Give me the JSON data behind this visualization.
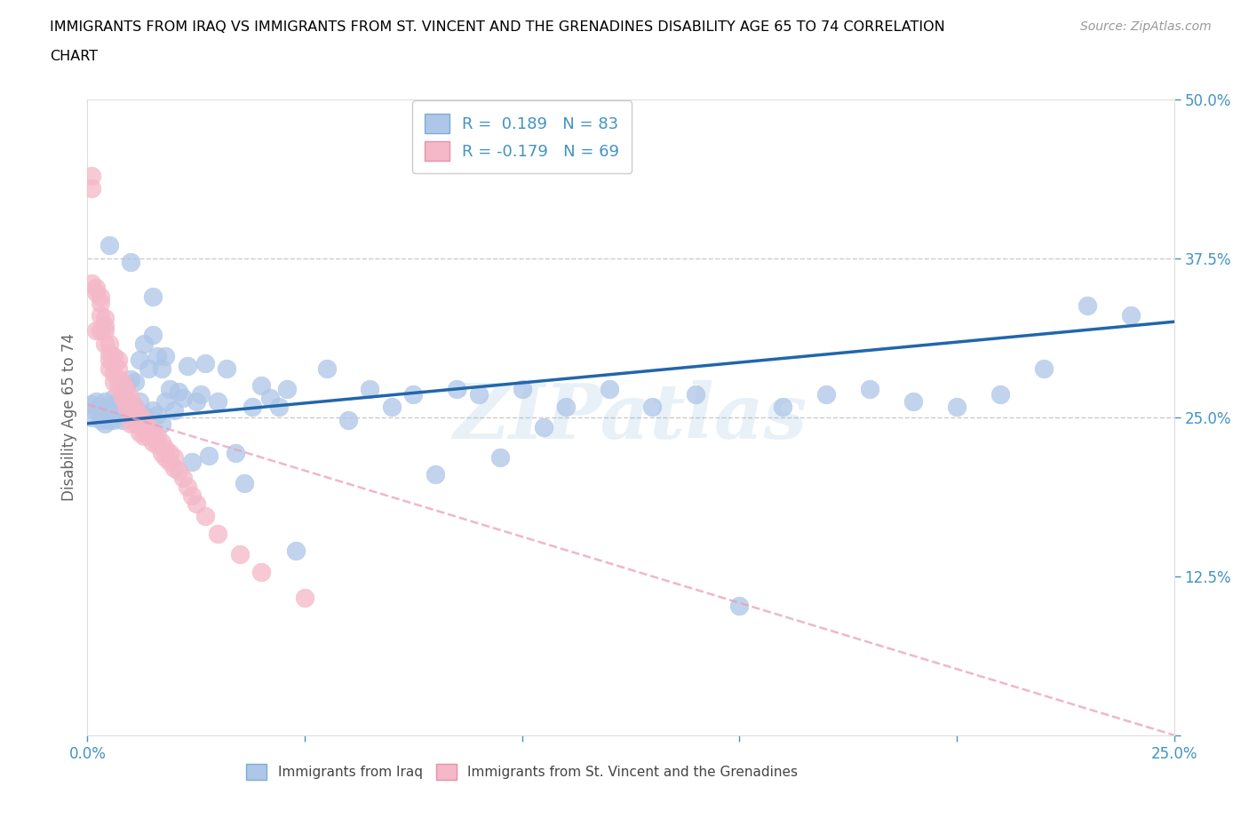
{
  "title_line1": "IMMIGRANTS FROM IRAQ VS IMMIGRANTS FROM ST. VINCENT AND THE GRENADINES DISABILITY AGE 65 TO 74 CORRELATION",
  "title_line2": "CHART",
  "source": "Source: ZipAtlas.com",
  "ylabel": "Disability Age 65 to 74",
  "xmin": 0.0,
  "xmax": 0.25,
  "ymin": 0.0,
  "ymax": 0.5,
  "iraq_R": 0.189,
  "iraq_N": 83,
  "stvincent_R": -0.179,
  "stvincent_N": 69,
  "iraq_color": "#aec6e8",
  "stvincent_color": "#f4b8c8",
  "iraq_line_color": "#2166ac",
  "stvincent_line_color": "#e8a0b8",
  "axis_color": "#4393c3",
  "watermark": "ZIPatlas",
  "iraq_x": [
    0.001,
    0.001,
    0.002,
    0.002,
    0.003,
    0.003,
    0.004,
    0.004,
    0.005,
    0.005,
    0.006,
    0.006,
    0.007,
    0.007,
    0.008,
    0.008,
    0.009,
    0.009,
    0.01,
    0.01,
    0.011,
    0.011,
    0.012,
    0.012,
    0.013,
    0.013,
    0.014,
    0.015,
    0.015,
    0.016,
    0.016,
    0.017,
    0.017,
    0.018,
    0.018,
    0.019,
    0.02,
    0.021,
    0.022,
    0.023,
    0.024,
    0.025,
    0.026,
    0.027,
    0.028,
    0.03,
    0.032,
    0.034,
    0.036,
    0.038,
    0.04,
    0.042,
    0.044,
    0.046,
    0.048,
    0.055,
    0.06,
    0.065,
    0.07,
    0.075,
    0.08,
    0.085,
    0.09,
    0.095,
    0.1,
    0.105,
    0.11,
    0.12,
    0.13,
    0.14,
    0.15,
    0.16,
    0.17,
    0.18,
    0.19,
    0.2,
    0.21,
    0.22,
    0.23,
    0.24,
    0.005,
    0.01,
    0.015
  ],
  "iraq_y": [
    0.25,
    0.26,
    0.255,
    0.262,
    0.248,
    0.258,
    0.262,
    0.245,
    0.258,
    0.248,
    0.265,
    0.248,
    0.262,
    0.252,
    0.27,
    0.248,
    0.275,
    0.262,
    0.28,
    0.252,
    0.278,
    0.258,
    0.295,
    0.262,
    0.308,
    0.252,
    0.288,
    0.315,
    0.255,
    0.298,
    0.252,
    0.288,
    0.245,
    0.298,
    0.262,
    0.272,
    0.255,
    0.27,
    0.265,
    0.29,
    0.215,
    0.262,
    0.268,
    0.292,
    0.22,
    0.262,
    0.288,
    0.222,
    0.198,
    0.258,
    0.275,
    0.265,
    0.258,
    0.272,
    0.145,
    0.288,
    0.248,
    0.272,
    0.258,
    0.268,
    0.205,
    0.272,
    0.268,
    0.218,
    0.272,
    0.242,
    0.258,
    0.272,
    0.258,
    0.268,
    0.102,
    0.258,
    0.268,
    0.272,
    0.262,
    0.258,
    0.268,
    0.288,
    0.338,
    0.33,
    0.385,
    0.372,
    0.345
  ],
  "stvincent_x": [
    0.001,
    0.001,
    0.001,
    0.002,
    0.002,
    0.002,
    0.003,
    0.003,
    0.003,
    0.003,
    0.004,
    0.004,
    0.004,
    0.004,
    0.005,
    0.005,
    0.005,
    0.005,
    0.006,
    0.006,
    0.006,
    0.006,
    0.007,
    0.007,
    0.007,
    0.007,
    0.008,
    0.008,
    0.008,
    0.009,
    0.009,
    0.009,
    0.01,
    0.01,
    0.01,
    0.01,
    0.011,
    0.011,
    0.011,
    0.012,
    0.012,
    0.012,
    0.013,
    0.013,
    0.013,
    0.014,
    0.014,
    0.015,
    0.015,
    0.016,
    0.016,
    0.017,
    0.017,
    0.018,
    0.018,
    0.019,
    0.019,
    0.02,
    0.02,
    0.021,
    0.022,
    0.023,
    0.024,
    0.025,
    0.027,
    0.03,
    0.035,
    0.04,
    0.05
  ],
  "stvincent_y": [
    0.44,
    0.43,
    0.355,
    0.348,
    0.352,
    0.318,
    0.345,
    0.34,
    0.33,
    0.318,
    0.328,
    0.322,
    0.318,
    0.308,
    0.308,
    0.3,
    0.295,
    0.288,
    0.298,
    0.292,
    0.285,
    0.278,
    0.295,
    0.288,
    0.28,
    0.272,
    0.278,
    0.272,
    0.265,
    0.272,
    0.265,
    0.258,
    0.265,
    0.258,
    0.252,
    0.245,
    0.258,
    0.252,
    0.245,
    0.252,
    0.245,
    0.238,
    0.248,
    0.242,
    0.235,
    0.242,
    0.235,
    0.238,
    0.23,
    0.235,
    0.228,
    0.23,
    0.222,
    0.225,
    0.218,
    0.222,
    0.215,
    0.218,
    0.21,
    0.208,
    0.202,
    0.195,
    0.188,
    0.182,
    0.172,
    0.158,
    0.142,
    0.128,
    0.108
  ]
}
